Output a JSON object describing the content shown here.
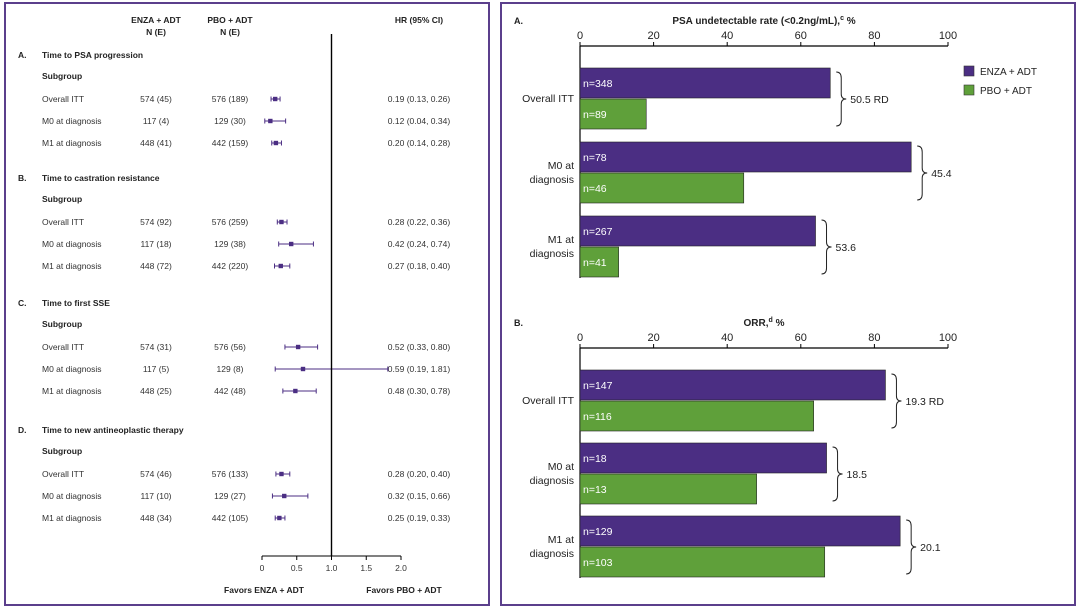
{
  "forest": {
    "col_enza": "ENZA + ADT",
    "col_pbo": "PBO + ADT",
    "col_n": "N (E)",
    "col_hr": "HR (95% CI)",
    "subgroup_label": "Subgroup",
    "xlabel_left": "Favors ENZA + ADT",
    "xlabel_right": "Favors PBO + ADT",
    "xlim": [
      0,
      2
    ],
    "ticks": [
      "0",
      "0.5",
      "1.0",
      "1.5",
      "2.0"
    ],
    "colors": {
      "marker": "#4b2e83",
      "axis": "#000000"
    },
    "sections": [
      {
        "letter": "A.",
        "title": "Time to PSA progression",
        "rows": [
          {
            "label": "Overall ITT",
            "enza": "574 (45)",
            "pbo": "576 (189)",
            "hr_text": "0.19 (0.13, 0.26)",
            "hr": 0.19,
            "lo": 0.13,
            "hi": 0.26
          },
          {
            "label": "M0 at diagnosis",
            "enza": "117 (4)",
            "pbo": "129 (30)",
            "hr_text": "0.12 (0.04, 0.34)",
            "hr": 0.12,
            "lo": 0.04,
            "hi": 0.34
          },
          {
            "label": "M1 at diagnosis",
            "enza": "448 (41)",
            "pbo": "442 (159)",
            "hr_text": "0.20 (0.14, 0.28)",
            "hr": 0.2,
            "lo": 0.14,
            "hi": 0.28
          }
        ]
      },
      {
        "letter": "B.",
        "title": "Time to castration resistance",
        "rows": [
          {
            "label": "Overall ITT",
            "enza": "574 (92)",
            "pbo": "576 (259)",
            "hr_text": "0.28 (0.22, 0.36)",
            "hr": 0.28,
            "lo": 0.22,
            "hi": 0.36
          },
          {
            "label": "M0 at diagnosis",
            "enza": "117 (18)",
            "pbo": "129 (38)",
            "hr_text": "0.42 (0.24, 0.74)",
            "hr": 0.42,
            "lo": 0.24,
            "hi": 0.74
          },
          {
            "label": "M1 at diagnosis",
            "enza": "448 (72)",
            "pbo": "442 (220)",
            "hr_text": "0.27 (0.18, 0.40)",
            "hr": 0.27,
            "lo": 0.18,
            "hi": 0.4
          }
        ]
      },
      {
        "letter": "C.",
        "title": "Time to first SSE",
        "rows": [
          {
            "label": "Overall ITT",
            "enza": "574 (31)",
            "pbo": "576 (56)",
            "hr_text": "0.52 (0.33, 0.80)",
            "hr": 0.52,
            "lo": 0.33,
            "hi": 0.8
          },
          {
            "label": "M0 at diagnosis",
            "enza": "117 (5)",
            "pbo": "129 (8)",
            "hr_text": "0.59 (0.19, 1.81)",
            "hr": 0.59,
            "lo": 0.19,
            "hi": 1.81
          },
          {
            "label": "M1 at diagnosis",
            "enza": "448 (25)",
            "pbo": "442 (48)",
            "hr_text": "0.48 (0.30, 0.78)",
            "hr": 0.48,
            "lo": 0.3,
            "hi": 0.78
          }
        ]
      },
      {
        "letter": "D.",
        "title": "Time to new antineoplastic therapy",
        "rows": [
          {
            "label": "Overall ITT",
            "enza": "574 (46)",
            "pbo": "576 (133)",
            "hr_text": "0.28 (0.20, 0.40)",
            "hr": 0.28,
            "lo": 0.2,
            "hi": 0.4
          },
          {
            "label": "M0 at diagnosis",
            "enza": "117 (10)",
            "pbo": "129 (27)",
            "hr_text": "0.32 (0.15, 0.66)",
            "hr": 0.32,
            "lo": 0.15,
            "hi": 0.66
          },
          {
            "label": "M1 at diagnosis",
            "enza": "448 (34)",
            "pbo": "442 (105)",
            "hr_text": "0.25 (0.19, 0.33)",
            "hr": 0.25,
            "lo": 0.19,
            "hi": 0.33
          }
        ]
      }
    ]
  },
  "bars": {
    "legend": [
      {
        "name": "ENZA + ADT",
        "color": "#4b2e83"
      },
      {
        "name": "PBO + ADT",
        "color": "#5fa03a"
      }
    ],
    "ticks": [
      "0",
      "20",
      "40",
      "60",
      "80",
      "100"
    ],
    "xlim": [
      0,
      100
    ]
  },
  "chart_data": [
    {
      "type": "forest",
      "title": "HR (95% CI)",
      "xlabel": "Favors ENZA + ADT / Favors PBO + ADT",
      "xlim": [
        0,
        2
      ],
      "reference_line": 1.0,
      "series": [
        {
          "name": "Time to PSA progression",
          "hr": [
            0.19,
            0.12,
            0.2
          ],
          "lo": [
            0.13,
            0.04,
            0.14
          ],
          "hi": [
            0.26,
            0.34,
            0.28
          ]
        },
        {
          "name": "Time to castration resistance",
          "hr": [
            0.28,
            0.42,
            0.27
          ],
          "lo": [
            0.22,
            0.24,
            0.18
          ],
          "hi": [
            0.36,
            0.74,
            0.4
          ]
        },
        {
          "name": "Time to first SSE",
          "hr": [
            0.52,
            0.59,
            0.48
          ],
          "lo": [
            0.33,
            0.19,
            0.3
          ],
          "hi": [
            0.8,
            1.81,
            0.78
          ]
        },
        {
          "name": "Time to new antineoplastic therapy",
          "hr": [
            0.28,
            0.32,
            0.25
          ],
          "lo": [
            0.2,
            0.15,
            0.19
          ],
          "hi": [
            0.4,
            0.66,
            0.33
          ]
        }
      ],
      "categories": [
        "Overall ITT",
        "M0 at diagnosis",
        "M1 at diagnosis"
      ]
    },
    {
      "type": "bar",
      "orientation": "horizontal",
      "letter": "A.",
      "title": "PSA undetectable rate (<0.2ng/mL),",
      "title_sup": "c",
      "title_unit": " %",
      "xlim": [
        0,
        100
      ],
      "groups": [
        {
          "label": [
            "Overall ITT"
          ],
          "enza": 68,
          "pbo": 18,
          "enza_n": "n=348",
          "pbo_n": "n=89",
          "rd": "50.5 RD"
        },
        {
          "label": [
            "M0 at",
            "diagnosis"
          ],
          "enza": 90,
          "pbo": 44.5,
          "enza_n": "n=78",
          "pbo_n": "n=46",
          "rd": "45.4"
        },
        {
          "label": [
            "M1 at",
            "diagnosis"
          ],
          "enza": 64,
          "pbo": 10.5,
          "enza_n": "n=267",
          "pbo_n": "n=41",
          "rd": "53.6"
        }
      ]
    },
    {
      "type": "bar",
      "orientation": "horizontal",
      "letter": "B.",
      "title": "ORR,",
      "title_sup": "d",
      "title_unit": " %",
      "xlim": [
        0,
        100
      ],
      "groups": [
        {
          "label": [
            "Overall ITT"
          ],
          "enza": 83,
          "pbo": 63.5,
          "enza_n": "n=147",
          "pbo_n": "n=116",
          "rd": "19.3 RD"
        },
        {
          "label": [
            "M0 at",
            "diagnosis"
          ],
          "enza": 67,
          "pbo": 48,
          "enza_n": "n=18",
          "pbo_n": "n=13",
          "rd": "18.5"
        },
        {
          "label": [
            "M1 at",
            "diagnosis"
          ],
          "enza": 87,
          "pbo": 66.5,
          "enza_n": "n=129",
          "pbo_n": "n=103",
          "rd": "20.1"
        }
      ]
    }
  ]
}
